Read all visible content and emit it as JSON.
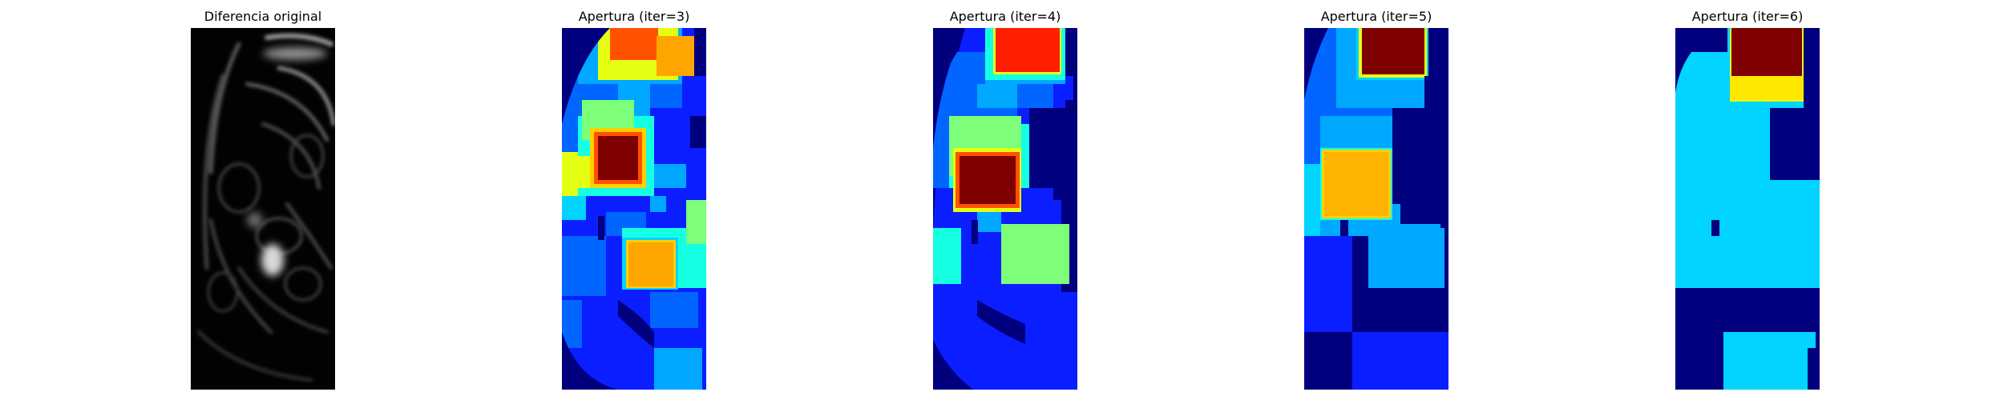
{
  "figure": {
    "panels": [
      {
        "title": "Diferencia original",
        "colormap": "gray"
      },
      {
        "title": "Apertura (iter=3)",
        "colormap": "jet"
      },
      {
        "title": "Apertura (iter=4)",
        "colormap": "jet"
      },
      {
        "title": "Apertura (iter=5)",
        "colormap": "jet"
      },
      {
        "title": "Apertura (iter=6)",
        "colormap": "jet"
      }
    ]
  },
  "colors": {
    "jet_dark_blue": "#00007f",
    "jet_blue": "#0a1eff",
    "jet_mid_blue": "#0066ff",
    "jet_azure": "#00a8ff",
    "jet_cyan": "#00d4ff",
    "jet_aqua": "#15ffe2",
    "jet_green": "#7dff7a",
    "jet_yellow": "#e5ff13",
    "jet_gold": "#ffd000",
    "jet_orange": "#ffa500",
    "jet_orange_red": "#ff5200",
    "jet_red": "#ff1e00",
    "jet_dark_red": "#7f0000",
    "background": "#ffffff",
    "gray_black": "#000000"
  }
}
